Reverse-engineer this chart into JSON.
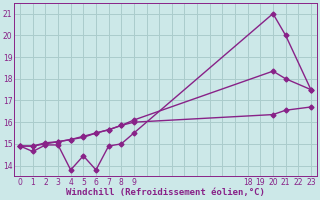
{
  "bg_color": "#cce8e8",
  "grid_color": "#aacccc",
  "line_color": "#882288",
  "line_width": 1.0,
  "marker": "D",
  "marker_size": 2.5,
  "xlabel": "Windchill (Refroidissement éolien,°C)",
  "xlabel_fontsize": 6.5,
  "xlim": [
    -0.5,
    23.5
  ],
  "ylim": [
    13.5,
    21.5
  ],
  "xticks": [
    0,
    1,
    2,
    3,
    4,
    5,
    6,
    7,
    8,
    9,
    18,
    19,
    20,
    21,
    22,
    23
  ],
  "yticks": [
    14,
    15,
    16,
    17,
    18,
    19,
    20,
    21
  ],
  "line1_x": [
    0,
    1,
    2,
    3,
    4,
    5,
    6,
    7,
    8,
    9,
    20,
    21,
    23
  ],
  "line1_y": [
    14.9,
    14.65,
    14.95,
    14.95,
    13.8,
    14.45,
    13.8,
    14.9,
    15.0,
    15.5,
    21.0,
    20.0,
    17.5
  ],
  "line2_x": [
    0,
    1,
    2,
    3,
    4,
    5,
    6,
    7,
    8,
    9,
    20,
    21,
    23
  ],
  "line2_y": [
    14.9,
    14.9,
    15.05,
    15.1,
    15.2,
    15.35,
    15.5,
    15.65,
    15.85,
    16.1,
    18.35,
    18.0,
    17.5
  ],
  "line3_x": [
    0,
    1,
    2,
    3,
    4,
    5,
    6,
    7,
    8,
    9,
    20,
    21,
    23
  ],
  "line3_y": [
    14.9,
    14.9,
    15.0,
    15.1,
    15.2,
    15.3,
    15.5,
    15.65,
    15.85,
    16.0,
    16.35,
    16.55,
    16.7
  ]
}
